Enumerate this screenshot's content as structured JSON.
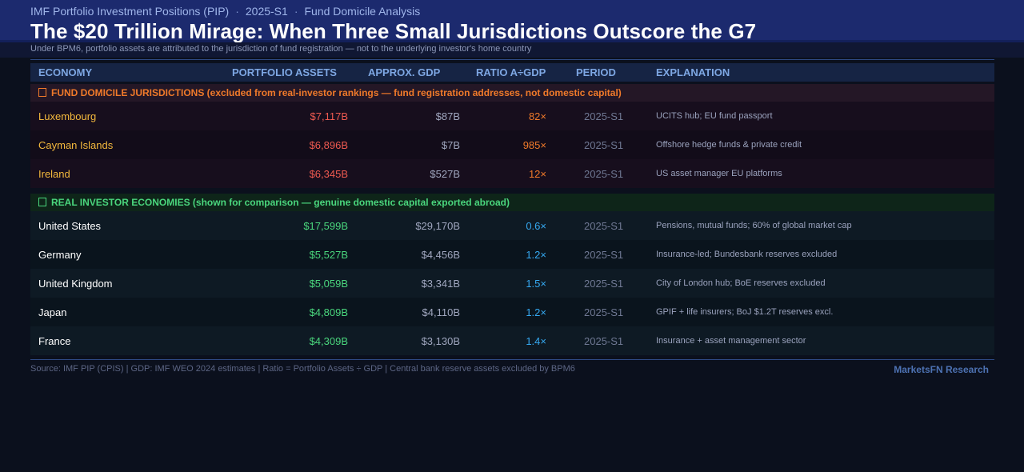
{
  "header": {
    "kicker_source": "IMF Portfolio Investment Positions (PIP)",
    "kicker_period": "2025-S1",
    "kicker_topic": "Fund Domicile Analysis",
    "separator": "·",
    "title": "The $20 Trillion Mirage: When Three Small Jurisdictions Outscore the G7",
    "subtitle": "Under BPM6, portfolio assets are attributed to the jurisdiction of fund registration — not to the underlying investor's home country"
  },
  "columns": [
    "ECONOMY",
    "PORTFOLIO ASSETS",
    "APPROX. GDP",
    "RATIO A÷GDP",
    "PERIOD",
    "EXPLANATION"
  ],
  "fund_section": {
    "icon": "warning-icon",
    "label": "FUND DOMICILE JURISDICTIONS  (excluded from real-investor rankings — fund registration addresses, not domestic capital)",
    "rows": [
      {
        "economy": "Luxembourg",
        "assets": "$7,117B",
        "gdp": "$87B",
        "ratio": "82×",
        "period": "2025-S1",
        "explanation": "UCITS hub; EU fund passport"
      },
      {
        "economy": "Cayman Islands",
        "assets": "$6,896B",
        "gdp": "$7B",
        "ratio": "985×",
        "period": "2025-S1",
        "explanation": "Offshore hedge funds & private credit"
      },
      {
        "economy": "Ireland",
        "assets": "$6,345B",
        "gdp": "$527B",
        "ratio": "12×",
        "period": "2025-S1",
        "explanation": "US asset manager EU platforms"
      }
    ]
  },
  "real_section": {
    "icon": "check-icon",
    "label": "REAL INVESTOR ECONOMIES  (shown for comparison — genuine domestic capital exported abroad)",
    "rows": [
      {
        "economy": "United States",
        "assets": "$17,599B",
        "gdp": "$29,170B",
        "ratio": "0.6×",
        "period": "2025-S1",
        "explanation": "Pensions, mutual funds; 60% of global market cap"
      },
      {
        "economy": "Germany",
        "assets": "$5,527B",
        "gdp": "$4,456B",
        "ratio": "1.2×",
        "period": "2025-S1",
        "explanation": "Insurance-led; Bundesbank reserves excluded"
      },
      {
        "economy": "United Kingdom",
        "assets": "$5,059B",
        "gdp": "$3,341B",
        "ratio": "1.5×",
        "period": "2025-S1",
        "explanation": "City of London hub; BoE reserves excluded"
      },
      {
        "economy": "Japan",
        "assets": "$4,809B",
        "gdp": "$4,110B",
        "ratio": "1.2×",
        "period": "2025-S1",
        "explanation": "GPIF + life insurers; BoJ $1.2T reserves excl."
      },
      {
        "economy": "France",
        "assets": "$4,309B",
        "gdp": "$3,130B",
        "ratio": "1.4×",
        "period": "2025-S1",
        "explanation": "Insurance + asset management sector"
      }
    ]
  },
  "footer": {
    "source": "Source: IMF PIP (CPIS)  |  GDP: IMF WEO 2024 estimates  |  Ratio = Portfolio Assets ÷ GDP  |  Central bank reserve assets excluded by BPM6",
    "brand": "MarketsFN Research"
  },
  "colors": {
    "header_bg": "#1c2a6e",
    "fund_accent": "#f07a2a",
    "fund_name": "#f4b93d",
    "fund_assets": "#ee5a50",
    "real_accent": "#4ad67d",
    "real_ratio": "#35a8f0"
  }
}
